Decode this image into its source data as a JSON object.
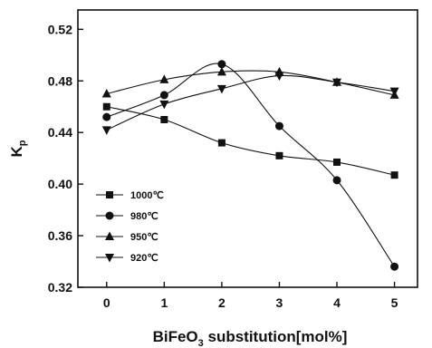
{
  "chart_data": {
    "type": "line",
    "title": "",
    "xlabel_parts": [
      "BiFeO",
      "3",
      " substitution[mol%]"
    ],
    "ylabel_parts": [
      "K",
      "p"
    ],
    "x": [
      0,
      1,
      2,
      3,
      4,
      5
    ],
    "xlim": [
      -0.5,
      5.4
    ],
    "ylim": [
      0.32,
      0.535
    ],
    "xticks": [
      "0",
      "1",
      "2",
      "3",
      "4",
      "5"
    ],
    "yticks": [
      "0.32",
      "0.36",
      "0.40",
      "0.44",
      "0.48",
      "0.52"
    ],
    "ytick_values": [
      0.32,
      0.36,
      0.4,
      0.44,
      0.48,
      0.52
    ],
    "grid": false,
    "legend_position": "bottom-left",
    "series": [
      {
        "name": "1000℃",
        "marker": "square",
        "values": [
          0.46,
          0.45,
          0.432,
          0.422,
          0.417,
          0.407
        ]
      },
      {
        "name": "980℃",
        "marker": "circle",
        "values": [
          0.452,
          0.469,
          0.493,
          0.445,
          0.403,
          0.336
        ]
      },
      {
        "name": "950℃",
        "marker": "triangle-up",
        "values": [
          0.47,
          0.481,
          0.487,
          0.487,
          0.479,
          0.469
        ]
      },
      {
        "name": "920℃",
        "marker": "triangle-down",
        "values": [
          0.442,
          0.462,
          0.474,
          0.484,
          0.479,
          0.472
        ]
      }
    ],
    "color": "#111111"
  }
}
